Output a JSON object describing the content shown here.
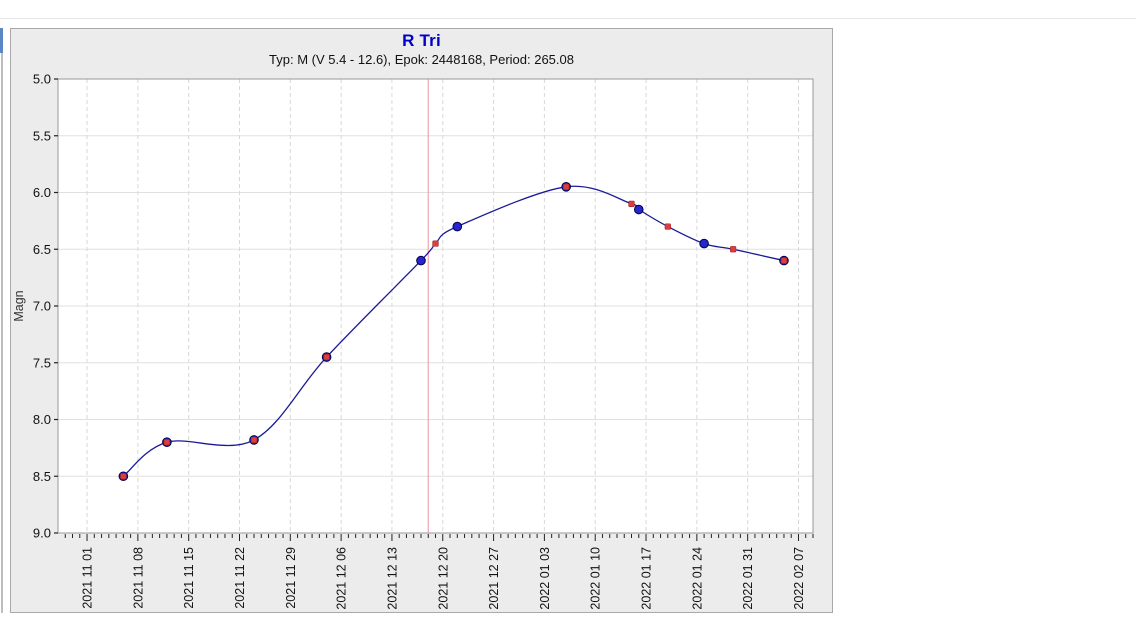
{
  "window": {
    "background": "#ffffff"
  },
  "left_edge": {
    "accent_color": "#5b87c5",
    "line_color": "#bdbdbd"
  },
  "chart": {
    "title": "R Tri",
    "subtitle": "Typ: M (V 5.4 - 12.6), Epok: 2448168, Period: 265.08",
    "ylabel": "Magn",
    "title_color": "#0000cc"
  },
  "chart_data": {
    "type": "line",
    "title": "R Tri",
    "subtitle": "Typ: M (V 5.4 - 12.6), Epok: 2448168, Period: 265.08",
    "star": "R Tri",
    "var_type": "M",
    "mag_range": "V 5.4 - 12.6",
    "epoch": "2448168",
    "period": "265.08",
    "xlabel": "",
    "ylabel": "Magn",
    "y_inverted": true,
    "ylim": [
      5.0,
      9.0
    ],
    "y_ticks": [
      "5.0",
      "5.5",
      "6.0",
      "6.5",
      "7.0",
      "7.5",
      "8.0",
      "8.5",
      "9.0"
    ],
    "x_start": "2021-10-28",
    "x_end": "2022-02-09",
    "x_tick_labels": [
      "2021 11 01",
      "2021 11 08",
      "2021 11 15",
      "2021 11 22",
      "2021 11 29",
      "2021 12 06",
      "2021 12 13",
      "2021 12 20",
      "2021 12 27",
      "2022 01 03",
      "2022 01 10",
      "2022 01 17",
      "2022 01 24",
      "2022 01 31",
      "2022 02 07"
    ],
    "minor_tick_interval_days": 1,
    "major_tick_interval_days": 7,
    "grid": true,
    "legend": "none",
    "marker_line": {
      "date": "2021-12-18",
      "color": "#f0a6ac"
    },
    "colors": {
      "curve": "#1a1a99",
      "obs_fill": "#2626cc",
      "obs_stroke": "#00004d",
      "pred_fill": "#d84040",
      "pred_stroke": "#a82020",
      "grid_h": "#e0e0e0",
      "grid_v": "#d8d8d8",
      "frame": "#999999",
      "tick": "#222222",
      "tick_text": "#111111"
    },
    "series": [
      {
        "name": "observations",
        "marker": "circle",
        "points": [
          {
            "date": "2021-11-06",
            "mag": 8.5
          },
          {
            "date": "2021-11-12",
            "mag": 8.2
          },
          {
            "date": "2021-11-24",
            "mag": 8.18
          },
          {
            "date": "2021-12-04",
            "mag": 7.45
          },
          {
            "date": "2021-12-17",
            "mag": 6.6
          },
          {
            "date": "2021-12-22",
            "mag": 6.3
          },
          {
            "date": "2022-01-06",
            "mag": 5.95
          },
          {
            "date": "2022-01-16",
            "mag": 6.15
          },
          {
            "date": "2022-01-25",
            "mag": 6.45
          },
          {
            "date": "2022-02-05",
            "mag": 6.6
          }
        ]
      },
      {
        "name": "predicted",
        "marker": "square",
        "points": [
          {
            "date": "2021-11-06",
            "mag": 8.5
          },
          {
            "date": "2021-11-12",
            "mag": 8.2
          },
          {
            "date": "2021-11-24",
            "mag": 8.18
          },
          {
            "date": "2021-12-04",
            "mag": 7.45
          },
          {
            "date": "2021-12-19",
            "mag": 6.45
          },
          {
            "date": "2022-01-06",
            "mag": 5.95
          },
          {
            "date": "2022-01-15",
            "mag": 6.1
          },
          {
            "date": "2022-01-20",
            "mag": 6.3
          },
          {
            "date": "2022-01-29",
            "mag": 6.5
          },
          {
            "date": "2022-02-05",
            "mag": 6.6
          }
        ]
      }
    ],
    "curve_points": [
      {
        "date": "2021-11-06",
        "mag": 8.5
      },
      {
        "date": "2021-11-12",
        "mag": 8.2
      },
      {
        "date": "2021-11-24",
        "mag": 8.18
      },
      {
        "date": "2021-12-04",
        "mag": 7.45
      },
      {
        "date": "2021-12-17",
        "mag": 6.6
      },
      {
        "date": "2021-12-19",
        "mag": 6.45
      },
      {
        "date": "2021-12-22",
        "mag": 6.3
      },
      {
        "date": "2022-01-06",
        "mag": 5.95
      },
      {
        "date": "2022-01-15",
        "mag": 6.1
      },
      {
        "date": "2022-01-16",
        "mag": 6.15
      },
      {
        "date": "2022-01-20",
        "mag": 6.3
      },
      {
        "date": "2022-01-25",
        "mag": 6.45
      },
      {
        "date": "2022-01-29",
        "mag": 6.5
      },
      {
        "date": "2022-02-05",
        "mag": 6.6
      }
    ]
  }
}
